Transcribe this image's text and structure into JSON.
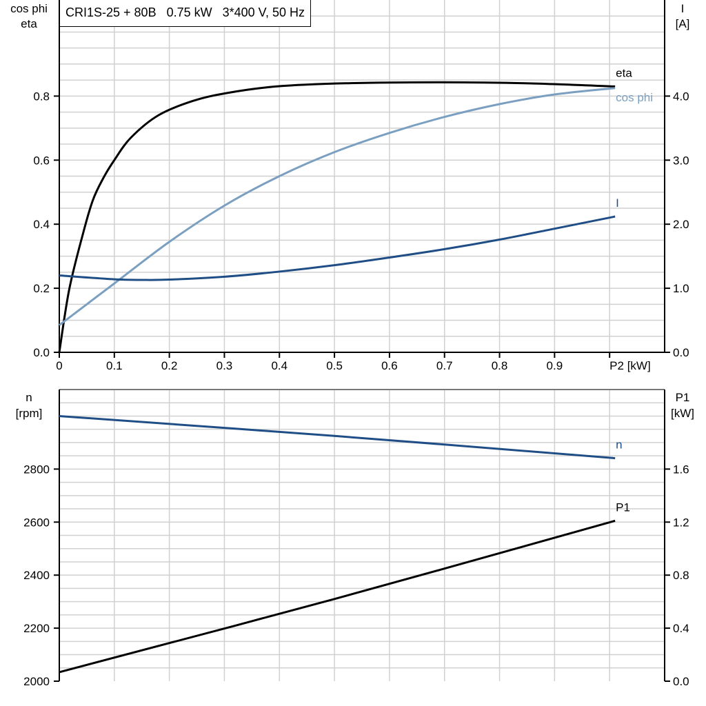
{
  "chart_data": [
    {
      "type": "line",
      "title": "CRI1S-25 + 80B   0.75 kW   3*400 V, 50 Hz",
      "xlabel": "P2 [kW]",
      "ylabel_left": [
        "cos phi",
        "eta"
      ],
      "ylabel_right": [
        "I",
        "[A]"
      ],
      "xlim": [
        0,
        1.1
      ],
      "ylim_left": [
        0,
        1.1
      ],
      "ylim_right": [
        0,
        5.5
      ],
      "x_ticks": [
        "0",
        "0.1",
        "0.2",
        "0.3",
        "0.4",
        "0.5",
        "0.6",
        "0.7",
        "0.8",
        "0.9"
      ],
      "y_ticks_left": [
        "0.0",
        "0.2",
        "0.4",
        "0.6",
        "0.8"
      ],
      "y_ticks_right": [
        "0.0",
        "1.0",
        "2.0",
        "3.0",
        "4.0"
      ],
      "grid": true,
      "series": [
        {
          "name": "eta",
          "axis": "left",
          "color": "#000000",
          "x": [
            0,
            0.018,
            0.043,
            0.061,
            0.08,
            0.1,
            0.13,
            0.18,
            0.243,
            0.306,
            0.394,
            0.52,
            0.695,
            0.846,
            1.01
          ],
          "y": [
            0,
            0.196,
            0.37,
            0.475,
            0.544,
            0.6,
            0.67,
            0.74,
            0.785,
            0.81,
            0.83,
            0.84,
            0.843,
            0.84,
            0.83
          ]
        },
        {
          "name": "cos phi",
          "axis": "left",
          "color": "#7a9fc0",
          "x": [
            0,
            0.1,
            0.2,
            0.3,
            0.4,
            0.5,
            0.6,
            0.7,
            0.8,
            0.9,
            1.01
          ],
          "y": [
            0.085,
            0.215,
            0.345,
            0.458,
            0.55,
            0.625,
            0.685,
            0.735,
            0.775,
            0.805,
            0.825
          ]
        },
        {
          "name": "I",
          "axis": "right",
          "color": "#1f4e86",
          "x": [
            0,
            0.1,
            0.15,
            0.2,
            0.3,
            0.4,
            0.5,
            0.6,
            0.7,
            0.8,
            0.9,
            1.01
          ],
          "y": [
            1.2,
            1.14,
            1.13,
            1.135,
            1.18,
            1.26,
            1.36,
            1.48,
            1.61,
            1.76,
            1.93,
            2.12
          ]
        }
      ]
    },
    {
      "type": "line",
      "ylabel_left": [
        "n",
        "[rpm]"
      ],
      "ylabel_right": [
        "P1",
        "[kW]"
      ],
      "xlim": [
        0,
        1.1
      ],
      "ylim_left": [
        2000,
        3100
      ],
      "ylim_right": [
        0,
        2.2
      ],
      "y_ticks_left": [
        "2000",
        "2200",
        "2400",
        "2600",
        "2800"
      ],
      "y_ticks_right": [
        "0.0",
        "0.4",
        "0.8",
        "1.2",
        "1.6"
      ],
      "grid": true,
      "series": [
        {
          "name": "n",
          "axis": "left",
          "color": "#1f4e86",
          "x": [
            0,
            0.5,
            1.01
          ],
          "y": [
            3000,
            2925,
            2841
          ]
        },
        {
          "name": "P1",
          "axis": "right",
          "color": "#000000",
          "x": [
            0,
            0.5,
            1.01
          ],
          "y": [
            0.068,
            0.62,
            1.21
          ]
        }
      ]
    }
  ]
}
